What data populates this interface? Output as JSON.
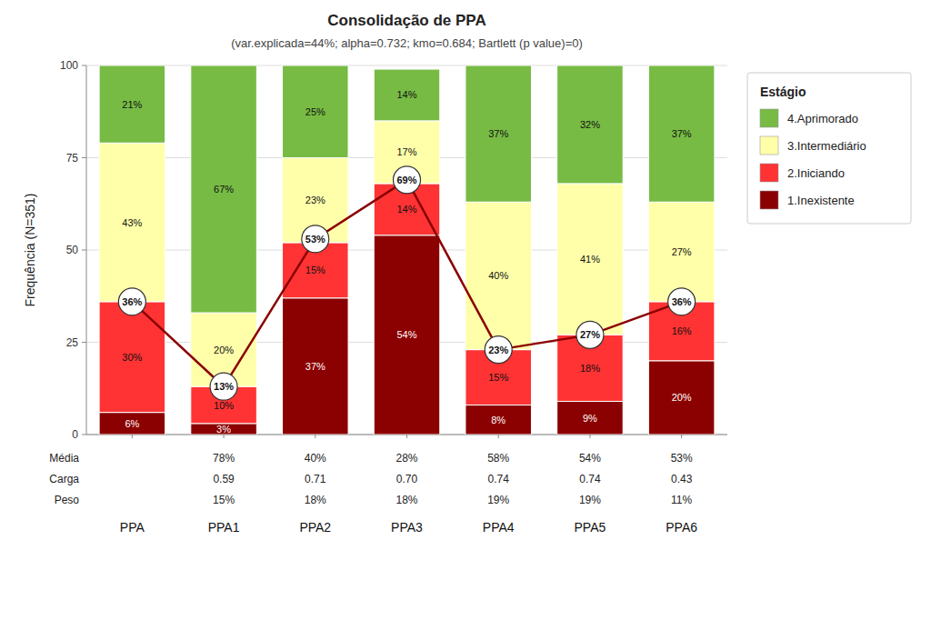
{
  "chart_data": {
    "type": "bar",
    "stacked": true,
    "title": "Consolidação de PPA",
    "subtitle": "(var.explicada=44%; alpha=0.732; kmo=0.684; Bartlett (p value)=0)",
    "ylabel": "Frequência (N=351)",
    "categories": [
      "PPA",
      "PPA1",
      "PPA2",
      "PPA3",
      "PPA4",
      "PPA5",
      "PPA6"
    ],
    "series": [
      {
        "name": "1.Inexistente",
        "color": "#8B0000",
        "values": [
          6,
          3,
          37,
          54,
          8,
          9,
          20
        ],
        "value_labels": [
          "6%",
          "3%",
          "37%",
          "54%",
          "8%",
          "9%",
          "20%"
        ]
      },
      {
        "name": "2.Iniciando",
        "color": "#FF3333",
        "values": [
          30,
          10,
          15,
          14,
          15,
          18,
          16
        ],
        "value_labels": [
          "30%",
          "10%",
          "15%",
          "14%",
          "15%",
          "18%",
          "16%"
        ]
      },
      {
        "name": "3.Intermediário",
        "color": "#FFFFAA",
        "values": [
          43,
          20,
          23,
          17,
          40,
          41,
          27
        ],
        "value_labels": [
          "43%",
          "20%",
          "23%",
          "17%",
          "40%",
          "41%",
          "27%"
        ]
      },
      {
        "name": "4.Aprimorado",
        "color": "#77BB44",
        "values": [
          21,
          67,
          25,
          14,
          37,
          32,
          37
        ],
        "value_labels": [
          "21%",
          "67%",
          "25%",
          "14%",
          "37%",
          "32%",
          "37%"
        ]
      },
      {
        "type": "line",
        "color": "#8B0000",
        "marker": "circle",
        "values": [
          36,
          13,
          53,
          69,
          23,
          27,
          36
        ],
        "value_labels": [
          "36%",
          "13%",
          "53%",
          "69%",
          "23%",
          "27%",
          "36%"
        ]
      }
    ],
    "data_labels": true,
    "ylim": [
      0,
      100
    ],
    "yticks": [
      0,
      25,
      50,
      75,
      100
    ],
    "grid": true,
    "legend": "right",
    "legend_title": "Estágio",
    "annotations": [
      {
        "label": "Média",
        "texts": [
          null,
          "78%",
          "40%",
          "28%",
          "58%",
          "54%",
          "53%"
        ]
      },
      {
        "label": "Carga",
        "texts": [
          null,
          "0.59",
          "0.71",
          "0.70",
          "0.74",
          "0.74",
          "0.43"
        ]
      },
      {
        "label": "Peso",
        "texts": [
          null,
          "15%",
          "18%",
          "18%",
          "19%",
          "19%",
          "11%"
        ]
      }
    ]
  }
}
